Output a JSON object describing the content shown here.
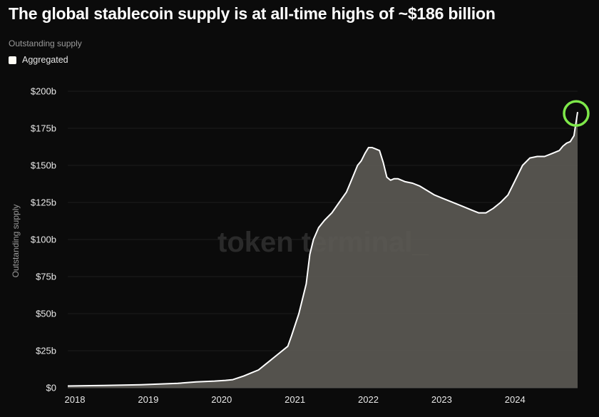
{
  "title": "The global stablecoin supply is at all-time highs of ~$186 billion",
  "subtitle": "Outstanding supply",
  "legend": {
    "label": "Aggregated",
    "color": "#fffef5"
  },
  "watermark": "token terminal_",
  "colors": {
    "background": "#0b0b0b",
    "area_fill": "#5b5954",
    "line": "#ffffff",
    "highlight_circle": "#7ee84a"
  },
  "chart_data": {
    "type": "area",
    "title": "The global stablecoin supply is at all-time highs of ~$186 billion",
    "ylabel": "Outstanding supply",
    "xlabel": "",
    "x_ticks": [
      "2018",
      "2019",
      "2020",
      "2021",
      "2022",
      "2023",
      "2024"
    ],
    "y_ticks": [
      "$0",
      "$25b",
      "$50b",
      "$75b",
      "$100b",
      "$125b",
      "$150b",
      "$175b",
      "$200b"
    ],
    "ylim": [
      0,
      200
    ],
    "xlim": [
      2018.0,
      2024.95
    ],
    "grid": "horizontal",
    "legend_position": "top-left",
    "series": [
      {
        "name": "Aggregated",
        "unit": "$b",
        "x": [
          2018.0,
          2018.5,
          2019.0,
          2019.25,
          2019.5,
          2019.75,
          2020.0,
          2020.15,
          2020.25,
          2020.4,
          2020.5,
          2020.6,
          2020.7,
          2020.8,
          2020.9,
          2021.0,
          2021.05,
          2021.15,
          2021.25,
          2021.3,
          2021.35,
          2021.42,
          2021.5,
          2021.6,
          2021.7,
          2021.8,
          2021.85,
          2021.95,
          2022.0,
          2022.05,
          2022.1,
          2022.15,
          2022.2,
          2022.25,
          2022.3,
          2022.35,
          2022.4,
          2022.45,
          2022.5,
          2022.6,
          2022.7,
          2022.8,
          2022.9,
          2023.0,
          2023.1,
          2023.2,
          2023.3,
          2023.4,
          2023.5,
          2023.6,
          2023.7,
          2023.8,
          2023.9,
          2024.0,
          2024.1,
          2024.2,
          2024.3,
          2024.4,
          2024.5,
          2024.6,
          2024.7,
          2024.75,
          2024.8,
          2024.85,
          2024.9,
          2024.95
        ],
        "values": [
          1.2,
          1.6,
          2.0,
          2.5,
          3.0,
          4.0,
          4.5,
          5.0,
          5.5,
          8.0,
          10.0,
          12.0,
          16.0,
          20.0,
          24.0,
          28.0,
          35.0,
          50.0,
          70.0,
          90.0,
          100.0,
          108.0,
          113.0,
          118.0,
          125.0,
          132.0,
          138.0,
          150.0,
          153.0,
          158.0,
          162.0,
          162.0,
          161.0,
          160.0,
          152.0,
          142.0,
          140.0,
          141.0,
          141.0,
          139.0,
          138.0,
          136.0,
          133.0,
          130.0,
          128.0,
          126.0,
          124.0,
          122.0,
          120.0,
          118.0,
          118.0,
          121.0,
          125.0,
          130.0,
          140.0,
          150.0,
          155.0,
          156.0,
          156.0,
          158.0,
          160.0,
          163.0,
          165.0,
          166.0,
          170.0,
          186.0
        ]
      }
    ],
    "annotations": [
      {
        "type": "circle",
        "x": 2024.95,
        "y": 186,
        "color": "#7ee84a"
      }
    ]
  }
}
